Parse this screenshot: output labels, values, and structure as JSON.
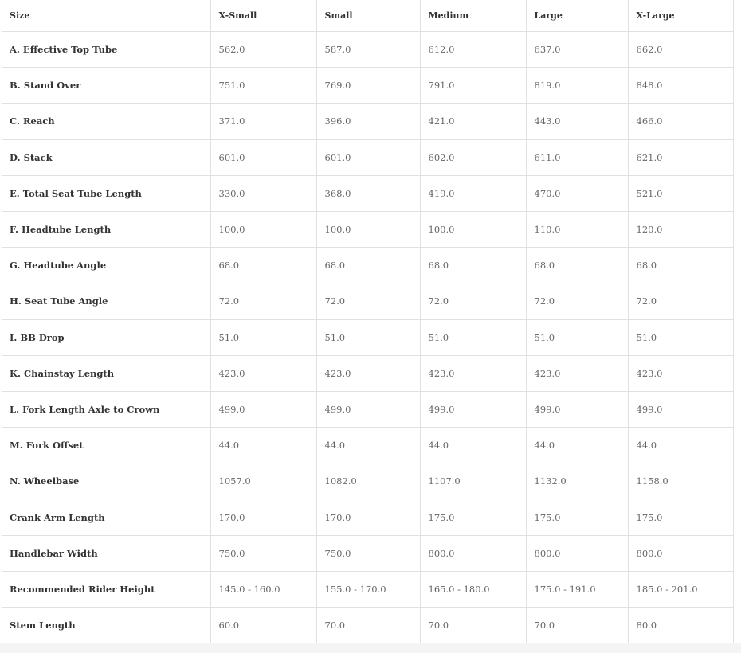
{
  "table": {
    "header": [
      "Size",
      "X-Small",
      "Small",
      "Medium",
      "Large",
      "X-Large"
    ],
    "rows": [
      [
        "A. Effective Top Tube",
        "562.0",
        "587.0",
        "612.0",
        "637.0",
        "662.0"
      ],
      [
        "B. Stand Over",
        "751.0",
        "769.0",
        "791.0",
        "819.0",
        "848.0"
      ],
      [
        "C. Reach",
        "371.0",
        "396.0",
        "421.0",
        "443.0",
        "466.0"
      ],
      [
        "D. Stack",
        "601.0",
        "601.0",
        "602.0",
        "611.0",
        "621.0"
      ],
      [
        "E. Total Seat Tube Length",
        "330.0",
        "368.0",
        "419.0",
        "470.0",
        "521.0"
      ],
      [
        "F. Headtube Length",
        "100.0",
        "100.0",
        "100.0",
        "110.0",
        "120.0"
      ],
      [
        "G. Headtube Angle",
        "68.0",
        "68.0",
        "68.0",
        "68.0",
        "68.0"
      ],
      [
        "H. Seat Tube Angle",
        "72.0",
        "72.0",
        "72.0",
        "72.0",
        "72.0"
      ],
      [
        "I. BB Drop",
        "51.0",
        "51.0",
        "51.0",
        "51.0",
        "51.0"
      ],
      [
        "K. Chainstay Length",
        "423.0",
        "423.0",
        "423.0",
        "423.0",
        "423.0"
      ],
      [
        "L. Fork Length Axle to Crown",
        "499.0",
        "499.0",
        "499.0",
        "499.0",
        "499.0"
      ],
      [
        "M. Fork Offset",
        "44.0",
        "44.0",
        "44.0",
        "44.0",
        "44.0"
      ],
      [
        "N. Wheelbase",
        "1057.0",
        "1082.0",
        "1107.0",
        "1132.0",
        "1158.0"
      ],
      [
        "Crank Arm Length",
        "170.0",
        "170.0",
        "175.0",
        "175.0",
        "175.0"
      ],
      [
        "Handlebar Width",
        "750.0",
        "750.0",
        "800.0",
        "800.0",
        "800.0"
      ],
      [
        "Recommended Rider Height",
        "145.0 - 160.0",
        "155.0 - 170.0",
        "165.0 - 180.0",
        "175.0 - 191.0",
        "185.0 - 201.0"
      ],
      [
        "Stem Length",
        "60.0",
        "70.0",
        "70.0",
        "70.0",
        "80.0"
      ]
    ]
  }
}
